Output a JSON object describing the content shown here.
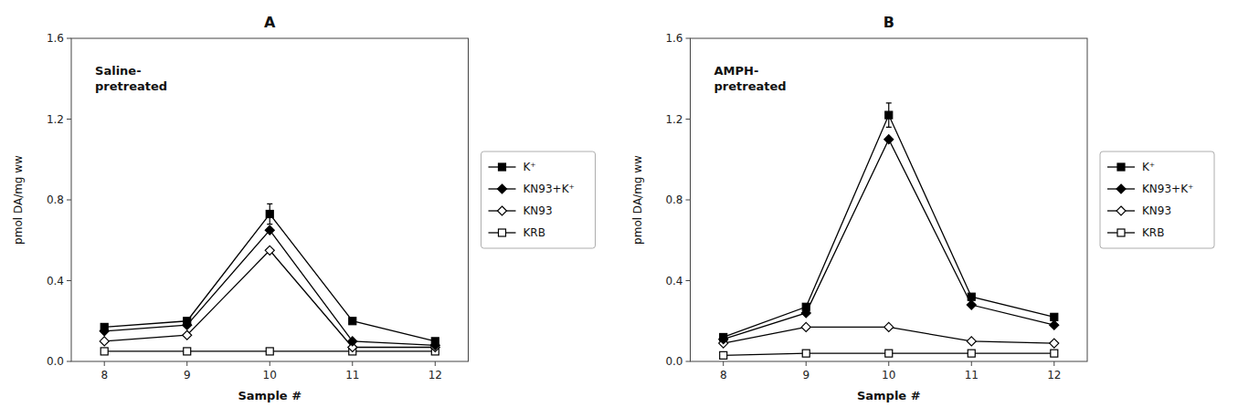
{
  "chart_data": [
    {
      "type": "line",
      "title": "A",
      "annotation": "Saline-\npretreated",
      "xlabel": "Sample #",
      "ylabel": "pmol DA/mg ww",
      "x": [
        8,
        9,
        10,
        11,
        12
      ],
      "xlim": [
        7.6,
        12.4
      ],
      "xticks": [
        8,
        9,
        10,
        11,
        12
      ],
      "ylim": [
        0,
        1.6
      ],
      "yticks": [
        {
          "value": 0.0,
          "label": "0.0"
        },
        0.4,
        0.8,
        1.2,
        1.6
      ],
      "grid": false,
      "legend": "right",
      "series": [
        {
          "name": "K⁺",
          "color": "#000000",
          "marker": "square",
          "line_style": "solid",
          "values": [
            0.17,
            0.2,
            0.73,
            0.2,
            0.1
          ],
          "errors": [
            0.0,
            0.0,
            0.05,
            0.0,
            0.0
          ]
        },
        {
          "name": "KN93+K⁺",
          "color": "#000000",
          "marker": "diamond",
          "line_style": "solid",
          "values": [
            0.15,
            0.18,
            0.65,
            0.1,
            0.08
          ],
          "errors": [
            0.0,
            0.0,
            0.0,
            0.0,
            0.0
          ]
        },
        {
          "name": "KN93",
          "color": "#000000",
          "marker": "open-diamond",
          "line_style": "solid",
          "values": [
            0.1,
            0.13,
            0.55,
            0.07,
            0.07
          ],
          "errors": [
            0.0,
            0.0,
            0.0,
            0.0,
            0.0
          ]
        },
        {
          "name": "KRB",
          "color": "#000000",
          "marker": "open-square",
          "line_style": "solid",
          "values": [
            0.05,
            0.05,
            0.05,
            0.05,
            0.05
          ],
          "errors": [
            0.0,
            0.0,
            0.0,
            0.0,
            0.0
          ]
        }
      ]
    },
    {
      "type": "line",
      "title": "B",
      "annotation": "AMPH-\npretreated",
      "xlabel": "Sample #",
      "ylabel": "pmol DA/mg ww",
      "x": [
        8,
        9,
        10,
        11,
        12
      ],
      "xlim": [
        7.6,
        12.4
      ],
      "xticks": [
        8,
        9,
        10,
        11,
        12
      ],
      "ylim": [
        0,
        1.6
      ],
      "yticks": [
        {
          "value": 0.0,
          "label": "0.0"
        },
        0.4,
        0.8,
        1.2,
        1.6
      ],
      "grid": false,
      "legend": "right",
      "series": [
        {
          "name": "K⁺",
          "color": "#000000",
          "marker": "square",
          "line_style": "solid",
          "values": [
            0.12,
            0.27,
            1.22,
            0.32,
            0.22
          ],
          "errors": [
            0.0,
            0.0,
            0.06,
            0.0,
            0.0
          ]
        },
        {
          "name": "KN93+K⁺",
          "color": "#000000",
          "marker": "diamond",
          "line_style": "solid",
          "values": [
            0.11,
            0.24,
            1.1,
            0.28,
            0.18
          ],
          "errors": [
            0.0,
            0.0,
            0.0,
            0.0,
            0.0
          ]
        },
        {
          "name": "KN93",
          "color": "#000000",
          "marker": "open-diamond",
          "line_style": "solid",
          "values": [
            0.09,
            0.17,
            0.17,
            0.1,
            0.09
          ],
          "errors": [
            0.0,
            0.0,
            0.0,
            0.0,
            0.0
          ]
        },
        {
          "name": "KRB",
          "color": "#000000",
          "marker": "open-square",
          "line_style": "solid",
          "values": [
            0.03,
            0.04,
            0.04,
            0.04,
            0.04
          ],
          "errors": [
            0.0,
            0.0,
            0.0,
            0.0,
            0.0
          ]
        }
      ]
    }
  ]
}
